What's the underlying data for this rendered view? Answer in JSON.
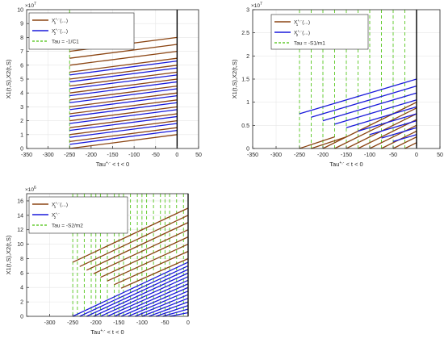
{
  "chart_data": [
    {
      "type": "line",
      "title": "",
      "xlabel": "Tau",
      "xlabel_sup": "+,-",
      "xlabel_rest": " < t < 0",
      "ylabel": "X1(t,S),X2(t,S)",
      "xlim": [
        -350,
        50
      ],
      "ylim": [
        0,
        100000000
      ],
      "xticks": [
        -350,
        -300,
        -250,
        -200,
        -150,
        -100,
        -50,
        0,
        50
      ],
      "yticks": [
        0,
        10000000,
        20000000,
        30000000,
        40000000,
        50000000,
        60000000,
        70000000,
        80000000,
        90000000,
        100000000
      ],
      "ytick_labels": [
        "0",
        "1",
        "2",
        "3",
        "4",
        "5",
        "6",
        "7",
        "8",
        "9",
        "10"
      ],
      "y_exponent": "7",
      "grid": true,
      "legend_position": "top-left",
      "legend": [
        {
          "label_main": "X",
          "label_sup": "+,-",
          "label_sub": "1",
          "label_tail": "(...)",
          "color": "#8B4513",
          "style": "solid"
        },
        {
          "label_main": "X",
          "label_sup": "+,-",
          "label_sub": "2",
          "label_tail": "(...)",
          "color": "#1a1adb",
          "style": "solid"
        },
        {
          "label_main": "Tau = -1/C1",
          "label_sup": "",
          "label_sub": "",
          "label_tail": "",
          "color": "#66cc33",
          "style": "dashed"
        }
      ],
      "vlines": [
        -250
      ],
      "series": [
        {
          "color": "#8B4513",
          "segments": [
            {
              "x": [
                -250,
                0
              ],
              "y": [
                70000000,
                80000000
              ]
            },
            {
              "x": [
                -250,
                0
              ],
              "y": [
                65000000,
                75000000
              ]
            },
            {
              "x": [
                -250,
                0
              ],
              "y": [
                60000000,
                70000000
              ]
            },
            {
              "x": [
                -250,
                0
              ],
              "y": [
                55000000,
                65000000
              ]
            },
            {
              "x": [
                -250,
                0
              ],
              "y": [
                50000000,
                60000000
              ]
            },
            {
              "x": [
                -250,
                0
              ],
              "y": [
                45000000,
                55000000
              ]
            },
            {
              "x": [
                -250,
                0
              ],
              "y": [
                40000000,
                50000000
              ]
            },
            {
              "x": [
                -250,
                0
              ],
              "y": [
                35000000,
                45000000
              ]
            },
            {
              "x": [
                -250,
                0
              ],
              "y": [
                30000000,
                40000000
              ]
            },
            {
              "x": [
                -250,
                0
              ],
              "y": [
                25000000,
                35000000
              ]
            },
            {
              "x": [
                -250,
                0
              ],
              "y": [
                20000000,
                30000000
              ]
            },
            {
              "x": [
                -250,
                0
              ],
              "y": [
                15000000,
                25000000
              ]
            },
            {
              "x": [
                -250,
                0
              ],
              "y": [
                10000000,
                20000000
              ]
            },
            {
              "x": [
                -250,
                0
              ],
              "y": [
                5000000,
                15000000
              ]
            },
            {
              "x": [
                -250,
                0
              ],
              "y": [
                0,
                10000000
              ]
            }
          ]
        },
        {
          "color": "#1a1adb",
          "segments": [
            {
              "x": [
                -250,
                0
              ],
              "y": [
                53000000,
                63000000
              ]
            },
            {
              "x": [
                -250,
                0
              ],
              "y": [
                48000000,
                58000000
              ]
            },
            {
              "x": [
                -250,
                0
              ],
              "y": [
                43000000,
                53000000
              ]
            },
            {
              "x": [
                -250,
                0
              ],
              "y": [
                38000000,
                48000000
              ]
            },
            {
              "x": [
                -250,
                0
              ],
              "y": [
                33000000,
                43000000
              ]
            },
            {
              "x": [
                -250,
                0
              ],
              "y": [
                28000000,
                38000000
              ]
            },
            {
              "x": [
                -250,
                0
              ],
              "y": [
                23000000,
                33000000
              ]
            },
            {
              "x": [
                -250,
                0
              ],
              "y": [
                18000000,
                28000000
              ]
            },
            {
              "x": [
                -250,
                0
              ],
              "y": [
                13000000,
                23000000
              ]
            },
            {
              "x": [
                -250,
                0
              ],
              "y": [
                8000000,
                18000000
              ]
            },
            {
              "x": [
                -250,
                0
              ],
              "y": [
                3000000,
                13000000
              ]
            }
          ]
        }
      ]
    },
    {
      "type": "line",
      "title": "",
      "xlabel": "Tau",
      "xlabel_sup": "+,-",
      "xlabel_rest": " < t < 0",
      "ylabel": "X1(t,S),X2(t,S)",
      "xlim": [
        -350,
        50
      ],
      "ylim": [
        0,
        30000000
      ],
      "xticks": [
        -350,
        -300,
        -250,
        -200,
        -150,
        -100,
        -50,
        0,
        50
      ],
      "yticks": [
        0,
        5000000,
        10000000,
        15000000,
        20000000,
        25000000,
        30000000
      ],
      "ytick_labels": [
        "0",
        "0.5",
        "1",
        "1.5",
        "2",
        "2.5",
        "3"
      ],
      "y_exponent": "7",
      "grid": true,
      "legend_position": "top-right",
      "legend": [
        {
          "label_main": "X",
          "label_sup": "+,-",
          "label_sub": "1",
          "label_tail": "(...)",
          "color": "#8B4513",
          "style": "solid"
        },
        {
          "label_main": "X",
          "label_sup": "+,-",
          "label_sub": "2",
          "label_tail": "(...)",
          "color": "#1a1adb",
          "style": "solid"
        },
        {
          "label_main": "Tau = -S1/m1",
          "label_sup": "",
          "label_sub": "",
          "label_tail": "",
          "color": "#66cc33",
          "style": "dashed"
        }
      ],
      "vlines": [
        -250,
        -225,
        -200,
        -175,
        -150,
        -125,
        -100,
        -75,
        -50,
        -25
      ],
      "series": [
        {
          "color": "#8B4513",
          "segments": [
            {
              "x": [
                -200,
                0
              ],
              "y": [
                0,
                10000000
              ]
            },
            {
              "x": [
                -175,
                0
              ],
              "y": [
                0,
                8750000
              ]
            },
            {
              "x": [
                -150,
                0
              ],
              "y": [
                0,
                7500000
              ]
            },
            {
              "x": [
                -125,
                0
              ],
              "y": [
                0,
                6250000
              ]
            },
            {
              "x": [
                -100,
                0
              ],
              "y": [
                0,
                5000000
              ]
            },
            {
              "x": [
                -75,
                0
              ],
              "y": [
                0,
                3750000
              ]
            },
            {
              "x": [
                -50,
                0
              ],
              "y": [
                0,
                2500000
              ]
            },
            {
              "x": [
                -25,
                0
              ],
              "y": [
                0,
                1250000
              ]
            },
            {
              "x": [
                -250,
                -175
              ],
              "y": [
                0,
                2500000
              ]
            },
            {
              "x": [
                -225,
                -150
              ],
              "y": [
                0,
                2500000
              ]
            }
          ]
        },
        {
          "color": "#1a1adb",
          "segments": [
            {
              "x": [
                -250,
                0
              ],
              "y": [
                7500000,
                15000000
              ]
            },
            {
              "x": [
                -225,
                0
              ],
              "y": [
                6750000,
                13500000
              ]
            },
            {
              "x": [
                -200,
                0
              ],
              "y": [
                6000000,
                12000000
              ]
            },
            {
              "x": [
                -175,
                0
              ],
              "y": [
                5250000,
                10500000
              ]
            },
            {
              "x": [
                -150,
                0
              ],
              "y": [
                4500000,
                9000000
              ]
            },
            {
              "x": [
                -125,
                0
              ],
              "y": [
                3750000,
                7500000
              ]
            },
            {
              "x": [
                -100,
                0
              ],
              "y": [
                3000000,
                6000000
              ]
            },
            {
              "x": [
                -75,
                0
              ],
              "y": [
                2250000,
                4500000
              ]
            },
            {
              "x": [
                -50,
                0
              ],
              "y": [
                1500000,
                3000000
              ]
            }
          ]
        }
      ]
    },
    {
      "type": "line",
      "title": "",
      "xlabel": "Tau",
      "xlabel_sup": "+,-",
      "xlabel_rest": " < t < 0",
      "ylabel": "X1(t,S),X2(t,S)",
      "xlim": [
        -350,
        0
      ],
      "ylim": [
        0,
        17000000
      ],
      "xticks": [
        -300,
        -250,
        -200,
        -150,
        -100,
        -50,
        0
      ],
      "yticks": [
        0,
        2000000,
        4000000,
        6000000,
        8000000,
        10000000,
        12000000,
        14000000,
        16000000
      ],
      "ytick_labels": [
        "0",
        "2",
        "4",
        "6",
        "8",
        "10",
        "12",
        "14",
        "16"
      ],
      "y_exponent": "6",
      "grid": true,
      "legend_position": "top-left",
      "legend": [
        {
          "label_main": "X",
          "label_sup": "+,-",
          "label_sub": "1",
          "label_tail": "(...)",
          "color": "#8B4513",
          "style": "solid"
        },
        {
          "label_main": "X",
          "label_sup": "+,-",
          "label_sub": "2",
          "label_tail": "",
          "color": "#1a1adb",
          "style": "solid"
        },
        {
          "label_main": "Tau = -S2/m2",
          "label_sup": "",
          "label_sub": "",
          "label_tail": "",
          "color": "#66cc33",
          "style": "dashed"
        }
      ],
      "vlines": [
        -250,
        -240,
        -225,
        -210,
        -200,
        -190,
        -175,
        -160,
        -150,
        -140,
        -125,
        -110,
        -100,
        -90,
        -75,
        -60,
        -50,
        -40,
        -25,
        -10
      ],
      "series": [
        {
          "color": "#8B4513",
          "segments": [
            {
              "x": [
                -250,
                0
              ],
              "y": [
                7500000,
                15000000
              ]
            },
            {
              "x": [
                -235,
                0
              ],
              "y": [
                6900000,
                14000000
              ]
            },
            {
              "x": [
                -220,
                0
              ],
              "y": [
                6400000,
                13000000
              ]
            },
            {
              "x": [
                -205,
                0
              ],
              "y": [
                5900000,
                12000000
              ]
            },
            {
              "x": [
                -190,
                0
              ],
              "y": [
                5400000,
                11000000
              ]
            },
            {
              "x": [
                -175,
                0
              ],
              "y": [
                4900000,
                10000000
              ]
            },
            {
              "x": [
                -160,
                0
              ],
              "y": [
                4400000,
                9000000
              ]
            },
            {
              "x": [
                -145,
                0
              ],
              "y": [
                3900000,
                8000000
              ]
            }
          ]
        },
        {
          "color": "#1a1adb",
          "segments": [
            {
              "x": [
                -250,
                0
              ],
              "y": [
                0,
                7500000
              ]
            },
            {
              "x": [
                -235,
                0
              ],
              "y": [
                0,
                7000000
              ]
            },
            {
              "x": [
                -220,
                0
              ],
              "y": [
                0,
                6500000
              ]
            },
            {
              "x": [
                -205,
                0
              ],
              "y": [
                0,
                6000000
              ]
            },
            {
              "x": [
                -190,
                0
              ],
              "y": [
                0,
                5500000
              ]
            },
            {
              "x": [
                -175,
                0
              ],
              "y": [
                0,
                5000000
              ]
            },
            {
              "x": [
                -160,
                0
              ],
              "y": [
                0,
                4500000
              ]
            },
            {
              "x": [
                -145,
                0
              ],
              "y": [
                0,
                4000000
              ]
            },
            {
              "x": [
                -130,
                0
              ],
              "y": [
                0,
                3500000
              ]
            },
            {
              "x": [
                -115,
                0
              ],
              "y": [
                0,
                3000000
              ]
            },
            {
              "x": [
                -100,
                0
              ],
              "y": [
                0,
                2500000
              ]
            },
            {
              "x": [
                -85,
                0
              ],
              "y": [
                0,
                2000000
              ]
            },
            {
              "x": [
                -70,
                0
              ],
              "y": [
                0,
                1500000
              ]
            },
            {
              "x": [
                -55,
                0
              ],
              "y": [
                0,
                1000000
              ]
            },
            {
              "x": [
                -40,
                0
              ],
              "y": [
                0,
                500000
              ]
            }
          ]
        }
      ]
    }
  ]
}
